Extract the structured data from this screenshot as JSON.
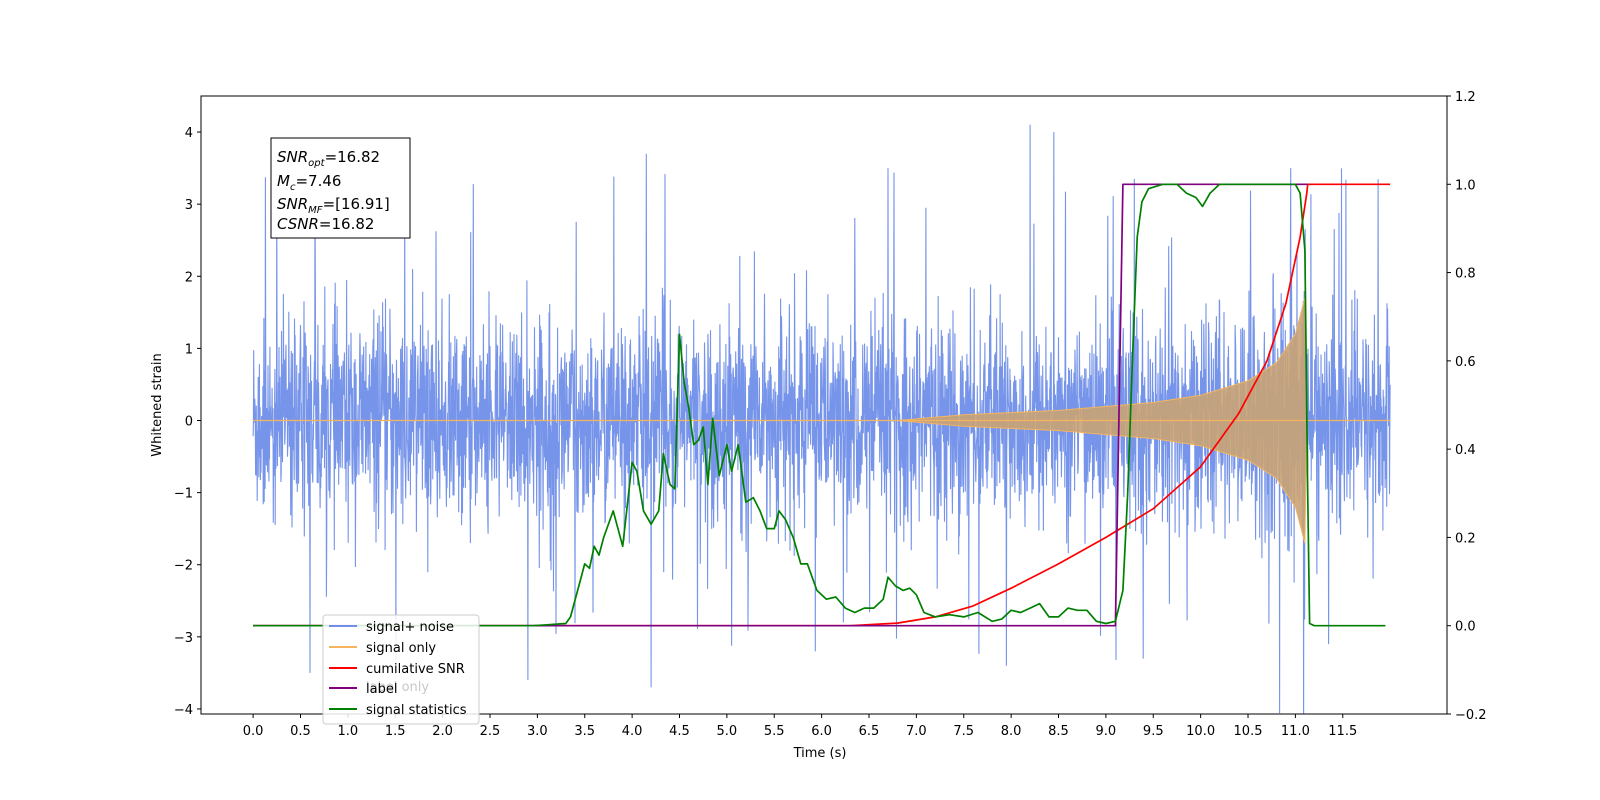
{
  "chart_data": {
    "type": "line",
    "xlabel": "Time (s)",
    "ylabel": "Whitened strain",
    "xlim": [
      -0.55,
      12.6
    ],
    "ylim": [
      -4.07,
      4.5
    ],
    "y2lim": [
      -0.2,
      1.2
    ],
    "x_ticks": [
      "0.0",
      "0.5",
      "1.0",
      "1.5",
      "2.0",
      "2.5",
      "3.0",
      "3.5",
      "4.0",
      "4.5",
      "5.0",
      "5.5",
      "6.0",
      "6.5",
      "7.0",
      "7.5",
      "8.0",
      "8.5",
      "9.0",
      "9.5",
      "10.0",
      "10.5",
      "11.0",
      "11.5"
    ],
    "y_ticks": [
      "4",
      "3",
      "2",
      "1",
      "0",
      "−1",
      "−2",
      "−3",
      "−4"
    ],
    "y2_ticks": [
      "1.2",
      "1.0",
      "0.8",
      "0.6",
      "0.4",
      "0.2",
      "0.0",
      "−0.2"
    ],
    "annotation": {
      "lines": [
        {
          "main": "SNR",
          "sub": "opt",
          "rest": "=16.82"
        },
        {
          "main": "M",
          "sub": "c",
          "rest": "=7.46"
        },
        {
          "main": "SNR",
          "sub": "MF",
          "rest": "=[16.91]"
        },
        {
          "main": "CSNR",
          "sub": "",
          "rest": "=16.82"
        }
      ]
    },
    "legend": {
      "placement": "lower-left",
      "entries": [
        {
          "label": "signal+ noise",
          "color": "#6f8ee8"
        },
        {
          "label": "signal only",
          "color": "#f5b560"
        },
        {
          "label": "cumilative SNR",
          "color": "#ff0000"
        },
        {
          "label": "label",
          "color": "#800080"
        },
        {
          "label": "signal statistics",
          "color": "#008000"
        }
      ],
      "ghost_text": "label only"
    },
    "series": [
      {
        "name": "signal+ noise",
        "axis": "left",
        "color": "#6f8ee8",
        "t_start": 0.0,
        "t_end": 12.0,
        "noise_std": 0.9,
        "peaks": [
          {
            "x": 4.15,
            "y": 3.7
          },
          {
            "x": 8.2,
            "y": 4.1
          },
          {
            "x": 8.45,
            "y": 4.0
          },
          {
            "x": 10.95,
            "y": 3.5
          },
          {
            "x": 6.7,
            "y": 3.5
          },
          {
            "x": 9.3,
            "y": 3.35
          },
          {
            "x": 0.25,
            "y": 3.3
          },
          {
            "x": 4.2,
            "y": -3.7
          },
          {
            "x": 2.9,
            "y": -3.6
          },
          {
            "x": 11.35,
            "y": -3.1
          },
          {
            "x": 7.95,
            "y": -3.4
          },
          {
            "x": 0.6,
            "y": -3.5
          }
        ]
      },
      {
        "name": "signal only",
        "axis": "left",
        "color": "#f5b560",
        "envelope": [
          {
            "x": 0.0,
            "y": 0.0
          },
          {
            "x": 6.8,
            "y": 0.0
          },
          {
            "x": 7.5,
            "y": 0.08
          },
          {
            "x": 8.5,
            "y": 0.14
          },
          {
            "x": 9.5,
            "y": 0.25
          },
          {
            "x": 10.0,
            "y": 0.35
          },
          {
            "x": 10.5,
            "y": 0.55
          },
          {
            "x": 10.8,
            "y": 0.8
          },
          {
            "x": 11.0,
            "y": 1.2
          },
          {
            "x": 11.1,
            "y": 1.7
          },
          {
            "x": 11.12,
            "y": 0.0
          },
          {
            "x": 12.0,
            "y": 0.0
          }
        ]
      },
      {
        "name": "cumilative SNR",
        "axis": "right",
        "color": "#ff0000",
        "points": [
          {
            "x": 0.0,
            "y": 0.0
          },
          {
            "x": 6.3,
            "y": 0.0
          },
          {
            "x": 6.8,
            "y": 0.006
          },
          {
            "x": 7.2,
            "y": 0.02
          },
          {
            "x": 7.6,
            "y": 0.045
          },
          {
            "x": 8.0,
            "y": 0.085
          },
          {
            "x": 8.5,
            "y": 0.14
          },
          {
            "x": 9.0,
            "y": 0.2
          },
          {
            "x": 9.5,
            "y": 0.265
          },
          {
            "x": 10.0,
            "y": 0.36
          },
          {
            "x": 10.4,
            "y": 0.48
          },
          {
            "x": 10.7,
            "y": 0.6
          },
          {
            "x": 10.9,
            "y": 0.73
          },
          {
            "x": 11.05,
            "y": 0.88
          },
          {
            "x": 11.12,
            "y": 0.98
          },
          {
            "x": 11.13,
            "y": 1.0
          },
          {
            "x": 11.5,
            "y": 1.0
          },
          {
            "x": 12.0,
            "y": 1.0
          }
        ]
      },
      {
        "name": "label",
        "axis": "right",
        "color": "#800080",
        "points": [
          {
            "x": 0.0,
            "y": 0.0
          },
          {
            "x": 9.1,
            "y": 0.0
          },
          {
            "x": 9.18,
            "y": 1.0
          },
          {
            "x": 11.13,
            "y": 1.0
          }
        ]
      },
      {
        "name": "signal statistics",
        "axis": "right",
        "color": "#008000",
        "points": [
          {
            "x": 0.0,
            "y": 0.0
          },
          {
            "x": 2.95,
            "y": 0.0
          },
          {
            "x": 3.1,
            "y": 0.002
          },
          {
            "x": 3.3,
            "y": 0.005
          },
          {
            "x": 3.35,
            "y": 0.02
          },
          {
            "x": 3.45,
            "y": 0.1
          },
          {
            "x": 3.5,
            "y": 0.14
          },
          {
            "x": 3.55,
            "y": 0.13
          },
          {
            "x": 3.6,
            "y": 0.18
          },
          {
            "x": 3.65,
            "y": 0.16
          },
          {
            "x": 3.7,
            "y": 0.2
          },
          {
            "x": 3.8,
            "y": 0.26
          },
          {
            "x": 3.9,
            "y": 0.18
          },
          {
            "x": 4.0,
            "y": 0.37
          },
          {
            "x": 4.05,
            "y": 0.35
          },
          {
            "x": 4.12,
            "y": 0.26
          },
          {
            "x": 4.2,
            "y": 0.23
          },
          {
            "x": 4.28,
            "y": 0.26
          },
          {
            "x": 4.33,
            "y": 0.39
          },
          {
            "x": 4.4,
            "y": 0.32
          },
          {
            "x": 4.45,
            "y": 0.31
          },
          {
            "x": 4.5,
            "y": 0.66
          },
          {
            "x": 4.55,
            "y": 0.55
          },
          {
            "x": 4.6,
            "y": 0.49
          },
          {
            "x": 4.65,
            "y": 0.41
          },
          {
            "x": 4.7,
            "y": 0.42
          },
          {
            "x": 4.75,
            "y": 0.45
          },
          {
            "x": 4.8,
            "y": 0.32
          },
          {
            "x": 4.85,
            "y": 0.47
          },
          {
            "x": 4.92,
            "y": 0.34
          },
          {
            "x": 5.0,
            "y": 0.41
          },
          {
            "x": 5.05,
            "y": 0.35
          },
          {
            "x": 5.12,
            "y": 0.41
          },
          {
            "x": 5.2,
            "y": 0.28
          },
          {
            "x": 5.28,
            "y": 0.29
          },
          {
            "x": 5.35,
            "y": 0.26
          },
          {
            "x": 5.42,
            "y": 0.22
          },
          {
            "x": 5.5,
            "y": 0.22
          },
          {
            "x": 5.55,
            "y": 0.26
          },
          {
            "x": 5.62,
            "y": 0.24
          },
          {
            "x": 5.7,
            "y": 0.2
          },
          {
            "x": 5.78,
            "y": 0.14
          },
          {
            "x": 5.85,
            "y": 0.14
          },
          {
            "x": 5.95,
            "y": 0.08
          },
          {
            "x": 6.05,
            "y": 0.06
          },
          {
            "x": 6.15,
            "y": 0.065
          },
          {
            "x": 6.25,
            "y": 0.04
          },
          {
            "x": 6.35,
            "y": 0.03
          },
          {
            "x": 6.45,
            "y": 0.04
          },
          {
            "x": 6.55,
            "y": 0.04
          },
          {
            "x": 6.65,
            "y": 0.06
          },
          {
            "x": 6.7,
            "y": 0.11
          },
          {
            "x": 6.78,
            "y": 0.09
          },
          {
            "x": 6.86,
            "y": 0.08
          },
          {
            "x": 6.93,
            "y": 0.085
          },
          {
            "x": 7.0,
            "y": 0.07
          },
          {
            "x": 7.08,
            "y": 0.03
          },
          {
            "x": 7.2,
            "y": 0.02
          },
          {
            "x": 7.35,
            "y": 0.025
          },
          {
            "x": 7.5,
            "y": 0.02
          },
          {
            "x": 7.65,
            "y": 0.03
          },
          {
            "x": 7.8,
            "y": 0.01
          },
          {
            "x": 7.9,
            "y": 0.015
          },
          {
            "x": 8.0,
            "y": 0.035
          },
          {
            "x": 8.1,
            "y": 0.03
          },
          {
            "x": 8.2,
            "y": 0.04
          },
          {
            "x": 8.3,
            "y": 0.05
          },
          {
            "x": 8.4,
            "y": 0.02
          },
          {
            "x": 8.5,
            "y": 0.02
          },
          {
            "x": 8.6,
            "y": 0.04
          },
          {
            "x": 8.7,
            "y": 0.035
          },
          {
            "x": 8.8,
            "y": 0.035
          },
          {
            "x": 8.9,
            "y": 0.01
          },
          {
            "x": 9.0,
            "y": 0.005
          },
          {
            "x": 9.1,
            "y": 0.01
          },
          {
            "x": 9.18,
            "y": 0.08
          },
          {
            "x": 9.23,
            "y": 0.3
          },
          {
            "x": 9.28,
            "y": 0.6
          },
          {
            "x": 9.33,
            "y": 0.88
          },
          {
            "x": 9.38,
            "y": 0.96
          },
          {
            "x": 9.45,
            "y": 0.99
          },
          {
            "x": 9.6,
            "y": 1.0
          },
          {
            "x": 9.75,
            "y": 1.0
          },
          {
            "x": 9.85,
            "y": 0.98
          },
          {
            "x": 9.95,
            "y": 0.97
          },
          {
            "x": 10.02,
            "y": 0.95
          },
          {
            "x": 10.1,
            "y": 0.98
          },
          {
            "x": 10.2,
            "y": 1.0
          },
          {
            "x": 11.0,
            "y": 1.0
          },
          {
            "x": 11.05,
            "y": 0.98
          },
          {
            "x": 11.1,
            "y": 0.85
          },
          {
            "x": 11.13,
            "y": 0.3
          },
          {
            "x": 11.15,
            "y": 0.005
          },
          {
            "x": 11.2,
            "y": 0.0
          },
          {
            "x": 11.95,
            "y": 0.0
          }
        ]
      }
    ]
  }
}
